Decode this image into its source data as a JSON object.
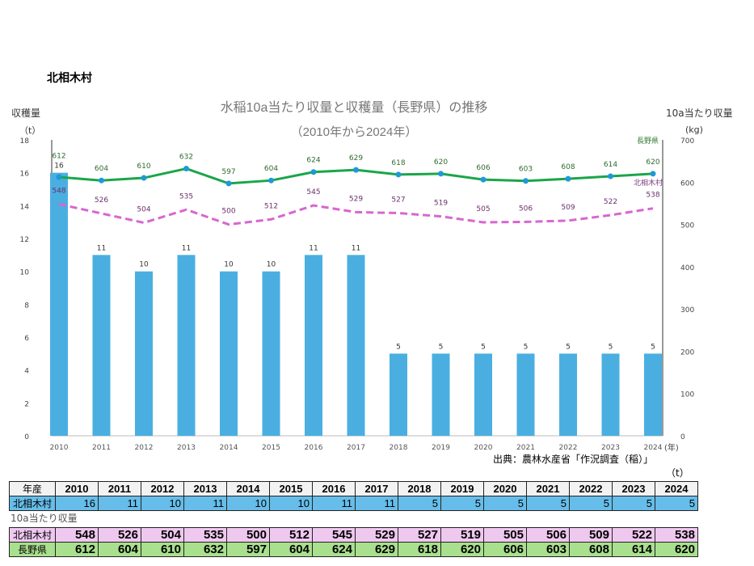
{
  "heading": "北相木村",
  "chart_data": {
    "type": "bar+line",
    "title": "水稲10a当たり収量と収穫量（長野県）の推移",
    "subtitle": "（2010年から2024年）",
    "ylabel_left": "収穫量",
    "yunit_left": "（t）",
    "ylabel_right": "10a当たり収量",
    "yunit_right": "(kg)",
    "xunit": "(年)",
    "ylim_left": [
      0,
      18
    ],
    "yticks_left": [
      0,
      2,
      4,
      6,
      8,
      10,
      12,
      14,
      16,
      18
    ],
    "ylim_right": [
      0,
      700
    ],
    "yticks_right": [
      0,
      100,
      200,
      300,
      400,
      500,
      600,
      700
    ],
    "categories": [
      "2010",
      "2011",
      "2012",
      "2013",
      "2014",
      "2015",
      "2016",
      "2017",
      "2018",
      "2019",
      "2020",
      "2021",
      "2022",
      "2023",
      "2024"
    ],
    "bars": {
      "values": [
        16,
        11,
        10,
        11,
        10,
        10,
        11,
        11,
        5,
        5,
        5,
        5,
        5,
        5,
        5
      ],
      "color": "#4aafe0",
      "axis": "left"
    },
    "series": [
      {
        "name": "長野県",
        "values": [
          612,
          604,
          610,
          632,
          597,
          604,
          624,
          629,
          618,
          620,
          606,
          603,
          608,
          614,
          620
        ],
        "color": "#1aa64a",
        "style": "solid",
        "axis": "right"
      },
      {
        "name": "北相木村",
        "values": [
          548,
          526,
          504,
          535,
          500,
          512,
          545,
          529,
          527,
          519,
          505,
          506,
          509,
          522,
          538
        ],
        "color": "#d866d0",
        "style": "dashed",
        "axis": "right"
      }
    ],
    "grid": false,
    "source": "出典：農林水産省「作況調査（稲）」"
  },
  "table": {
    "unit": "（t）",
    "header_label": "年産",
    "harvest_label": "北相木村",
    "yield_section_label": "10a当たり収量",
    "village_label": "北相木村",
    "pref_label": "長野県"
  }
}
